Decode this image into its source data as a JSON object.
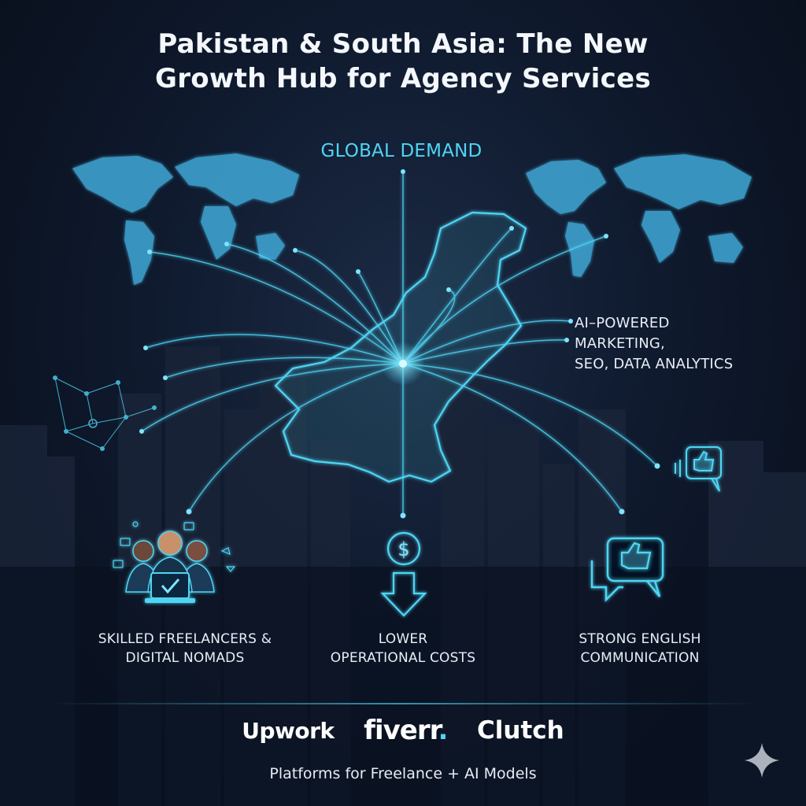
{
  "title": "Pakistan & South Asia: The New\nGrowth Hub for Agency Services",
  "global_demand": "GLOBAL DEMAND",
  "ai_services": "AI–POWERED\nMARKETING,\nSEO, DATA ANALYTICS",
  "pillars": {
    "freelancers": "SKILLED FREELANCERS &\nDIGITAL NOMADS",
    "costs": "LOWER\nOPERATIONAL COSTS",
    "english": "STRONG ENGLISH\nCOMMUNICATION"
  },
  "logos": {
    "upwork": "Upwork",
    "fiverr": "fiverr",
    "fiverr_dot": ".",
    "clutch": "Clutch"
  },
  "footer": "Platforms for Freelance + AI Models",
  "icons": {
    "freelancers": "people-laptop-check-icon",
    "costs": "dollar-down-arrow-icon",
    "english": "thumbs-up-speech-bubble-icon",
    "network": "network-nodes-icon",
    "sparkle": "sparkle-icon"
  },
  "colors": {
    "accent": "#4fd5f4",
    "background": "#0f1a2e",
    "map": "#3fa9d8",
    "text": "#f4f7fb"
  }
}
